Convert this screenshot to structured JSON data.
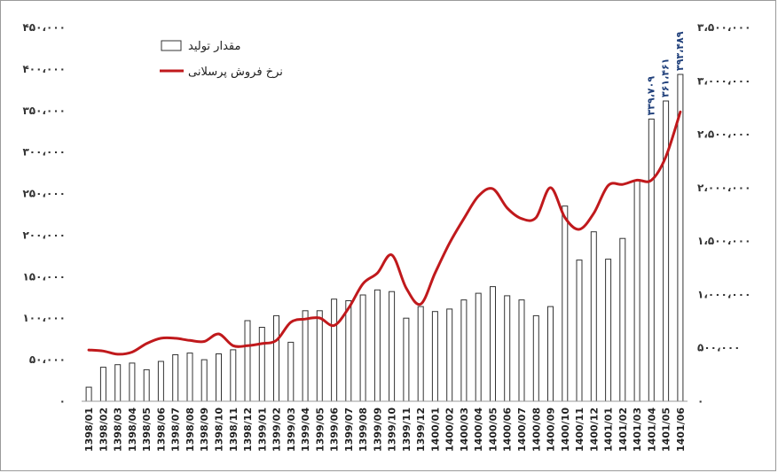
{
  "chart_data": {
    "type": "bar",
    "categories": [
      "1398/01",
      "1398/02",
      "1398/03",
      "1398/04",
      "1398/05",
      "1398/06",
      "1398/07",
      "1398/08",
      "1398/09",
      "1398/10",
      "1398/11",
      "1398/12",
      "1399/01",
      "1399/02",
      "1399/03",
      "1399/04",
      "1399/05",
      "1399/06",
      "1399/07",
      "1399/08",
      "1399/09",
      "1399/10",
      "1399/11",
      "1399/12",
      "1400/01",
      "1400/02",
      "1400/03",
      "1400/04",
      "1400/05",
      "1400/06",
      "1400/07",
      "1400/08",
      "1400/09",
      "1400/10",
      "1400/11",
      "1400/12",
      "1401/01",
      "1401/02",
      "1401/03",
      "1401/04",
      "1401/05",
      "1401/06"
    ],
    "series": [
      {
        "name": "مقدار تولید",
        "type": "bar",
        "axis": "left",
        "color": "#ffffff",
        "stroke": "#333333",
        "values": [
          17000,
          41000,
          44000,
          46000,
          38000,
          48000,
          56000,
          58000,
          50000,
          57000,
          62000,
          97000,
          89000,
          103000,
          71000,
          109000,
          109000,
          123000,
          121000,
          128000,
          134000,
          132000,
          100000,
          114000,
          108000,
          111000,
          122000,
          130000,
          138000,
          127000,
          122000,
          103000,
          114000,
          235000,
          170000,
          204000,
          171000,
          196000,
          266000,
          339709,
          361461,
          393489
        ]
      },
      {
        "name": "نرخ فروش پرسلانی",
        "type": "line",
        "axis": "right",
        "color": "#c0191c",
        "values": [
          480000,
          470000,
          440000,
          460000,
          540000,
          590000,
          590000,
          570000,
          560000,
          630000,
          520000,
          520000,
          540000,
          570000,
          740000,
          770000,
          780000,
          710000,
          870000,
          1100000,
          1200000,
          1370000,
          1060000,
          910000,
          1200000,
          1480000,
          1710000,
          1920000,
          1990000,
          1810000,
          1710000,
          1720000,
          2000000,
          1720000,
          1610000,
          1760000,
          2020000,
          2030000,
          2070000,
          2070000,
          2290000,
          2710000
        ]
      }
    ],
    "data_labels": [
      {
        "index": 39,
        "text": "۳۳۹،۷۰۹"
      },
      {
        "index": 40,
        "text": "۳۶۱،۴۶۱"
      },
      {
        "index": 41,
        "text": "۳۹۳،۴۸۹"
      }
    ],
    "ylim": [
      0,
      450000
    ],
    "y2lim": [
      0,
      3500000
    ],
    "yticks": [
      {
        "value": 0,
        "label": "۰"
      },
      {
        "value": 50000,
        "label": "۵۰،۰۰۰"
      },
      {
        "value": 100000,
        "label": "۱۰۰،۰۰۰"
      },
      {
        "value": 150000,
        "label": "۱۵۰،۰۰۰"
      },
      {
        "value": 200000,
        "label": "۲۰۰،۰۰۰"
      },
      {
        "value": 250000,
        "label": "۲۵۰،۰۰۰"
      },
      {
        "value": 300000,
        "label": "۳۰۰،۰۰۰"
      },
      {
        "value": 350000,
        "label": "۳۵۰،۰۰۰"
      },
      {
        "value": 400000,
        "label": "۴۰۰،۰۰۰"
      },
      {
        "value": 450000,
        "label": "۴۵۰،۰۰۰"
      }
    ],
    "y2ticks": [
      {
        "value": 0,
        "label": "۰"
      },
      {
        "value": 500000,
        "label": "۵۰۰،۰۰۰"
      },
      {
        "value": 1000000,
        "label": "۱،۰۰۰،۰۰۰"
      },
      {
        "value": 1500000,
        "label": "۱،۵۰۰،۰۰۰"
      },
      {
        "value": 2000000,
        "label": "۲،۰۰۰،۰۰۰"
      },
      {
        "value": 2500000,
        "label": "۲،۵۰۰،۰۰۰"
      },
      {
        "value": 3000000,
        "label": "۳،۰۰۰،۰۰۰"
      },
      {
        "value": 3500000,
        "label": "۳،۵۰۰،۰۰۰"
      }
    ],
    "legend": {
      "position": "top-left",
      "items": [
        {
          "label": "مقدار تولید",
          "kind": "bar"
        },
        {
          "label": "نرخ فروش پرسلانی",
          "kind": "line"
        }
      ]
    },
    "grid": false
  }
}
